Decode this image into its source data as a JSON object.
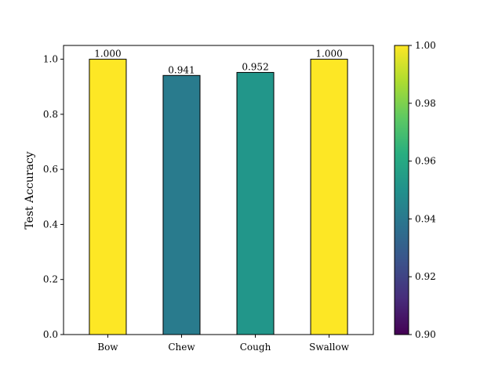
{
  "chart_data": {
    "type": "bar",
    "title": "",
    "xlabel": "",
    "ylabel": "Test Accuracy",
    "categories": [
      "Bow",
      "Chew",
      "Cough",
      "Swallow"
    ],
    "values": [
      1.0,
      0.941,
      0.952,
      1.0
    ],
    "data_labels": [
      "1.000",
      "0.941",
      "0.952",
      "1.000"
    ],
    "ylim": [
      0.0,
      1.05
    ],
    "yticks": [
      0.0,
      0.2,
      0.4,
      0.6,
      0.8,
      1.0
    ],
    "ytick_labels": [
      "0.0",
      "0.2",
      "0.4",
      "0.6",
      "0.8",
      "1.0"
    ],
    "grid": false,
    "colormap": "viridis",
    "color_range": [
      0.9,
      1.0
    ],
    "bar_edge_color": "#000000",
    "colorbar": {
      "ticks": [
        0.9,
        0.92,
        0.94,
        0.96,
        0.98,
        1.0
      ],
      "tick_labels": [
        "0.90",
        "0.92",
        "0.94",
        "0.96",
        "0.98",
        "1.00"
      ]
    }
  }
}
